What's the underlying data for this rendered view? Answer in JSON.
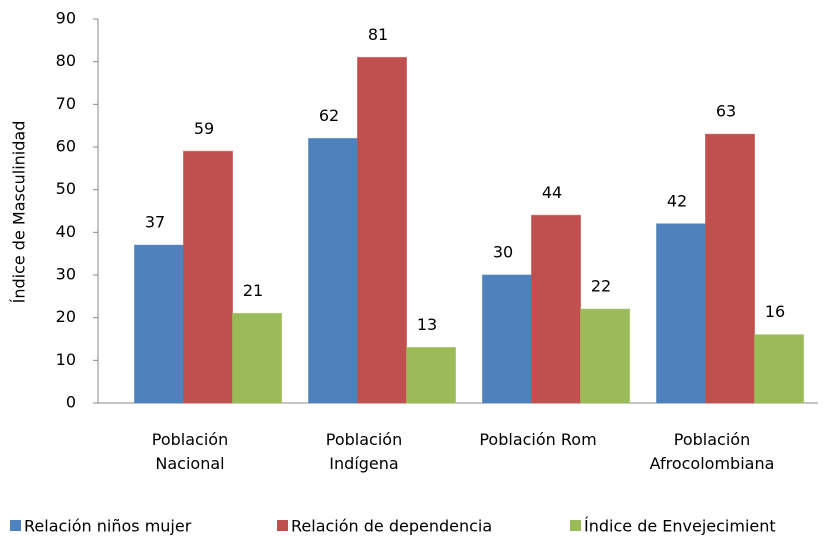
{
  "chart_data": {
    "type": "bar",
    "y_label": "Índice de Masculinidad",
    "categories": [
      [
        "Población",
        "Nacional"
      ],
      [
        "Población",
        "Indígena"
      ],
      [
        "Población Rom"
      ],
      [
        "Población",
        "Afrocolombiana"
      ]
    ],
    "series": [
      {
        "name": "Relación niños mujer",
        "color": "#4f81bd",
        "values": [
          37,
          62,
          30,
          42
        ]
      },
      {
        "name": "Relación de dependencia",
        "color": "#c0504d",
        "values": [
          59,
          81,
          44,
          63
        ]
      },
      {
        "name": "Índice de Envejecimient",
        "color": "#9bbb59",
        "values": [
          21,
          13,
          22,
          16
        ]
      }
    ],
    "ylim": [
      0,
      90
    ],
    "yticks": [
      0,
      10,
      20,
      30,
      40,
      50,
      60,
      70,
      80,
      90
    ],
    "grid": false,
    "legend": "bottom"
  }
}
